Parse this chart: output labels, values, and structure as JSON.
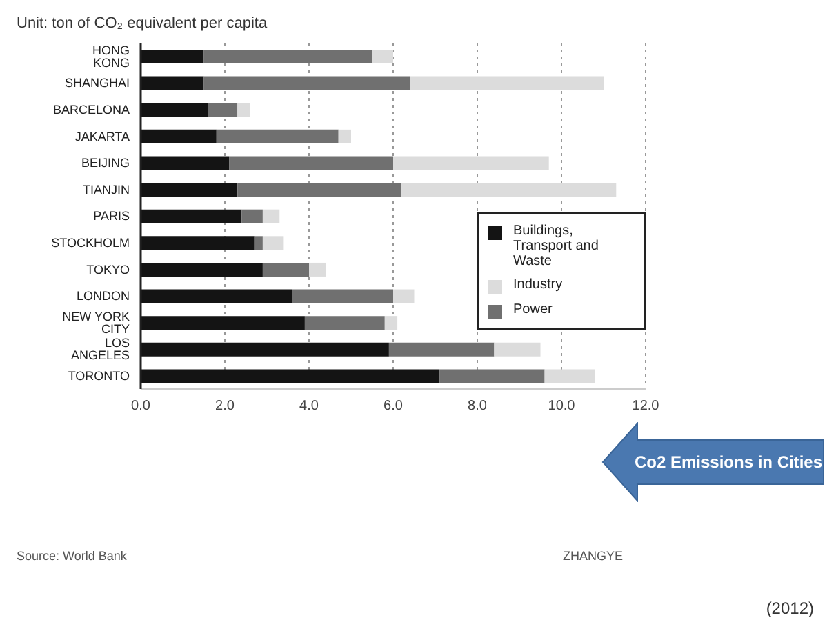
{
  "chart_data": {
    "type": "bar",
    "orientation": "horizontal",
    "stacked": true,
    "title": "Unit: ton of CO₂ equivalent per capita",
    "categories": [
      "HONG KONG",
      "SHANGHAI",
      "BARCELONA",
      "JAKARTA",
      "BEIJING",
      "TIANJIN",
      "PARIS",
      "STOCKHOLM",
      "TOKYO",
      "LONDON",
      "NEW YORK CITY",
      "LOS ANGELES",
      "TORONTO"
    ],
    "series": [
      {
        "name": "Buildings, Transport and Waste",
        "color": "#141414",
        "values": [
          1.5,
          1.5,
          1.6,
          1.8,
          2.1,
          2.3,
          2.4,
          2.7,
          2.9,
          3.6,
          3.9,
          5.9,
          7.1
        ]
      },
      {
        "name": "Power",
        "color": "#707070",
        "values": [
          4.0,
          4.9,
          0.7,
          2.9,
          3.9,
          3.9,
          0.5,
          0.2,
          1.1,
          2.4,
          1.9,
          2.5,
          2.5
        ]
      },
      {
        "name": "Industry",
        "color": "#dcdcdc",
        "values": [
          0.5,
          4.6,
          0.3,
          0.3,
          3.7,
          5.1,
          0.4,
          0.5,
          0.4,
          0.5,
          0.3,
          1.1,
          1.2
        ]
      }
    ],
    "xlim": [
      0,
      12
    ],
    "xticks": [
      {
        "value": 0,
        "label": "0.0"
      },
      {
        "value": 2,
        "label": "2.0"
      },
      {
        "value": 4,
        "label": "4.0"
      },
      {
        "value": 6,
        "label": "6.0"
      },
      {
        "value": 8,
        "label": "8.0"
      },
      {
        "value": 10,
        "label": "10.0"
      },
      {
        "value": 12,
        "label": "12.0"
      }
    ],
    "grid": "x",
    "legend": "right",
    "annotations": [
      "Co2 Emissions in Cities",
      "Source: World Bank",
      "ZHANGYE",
      "(2012)"
    ]
  }
}
